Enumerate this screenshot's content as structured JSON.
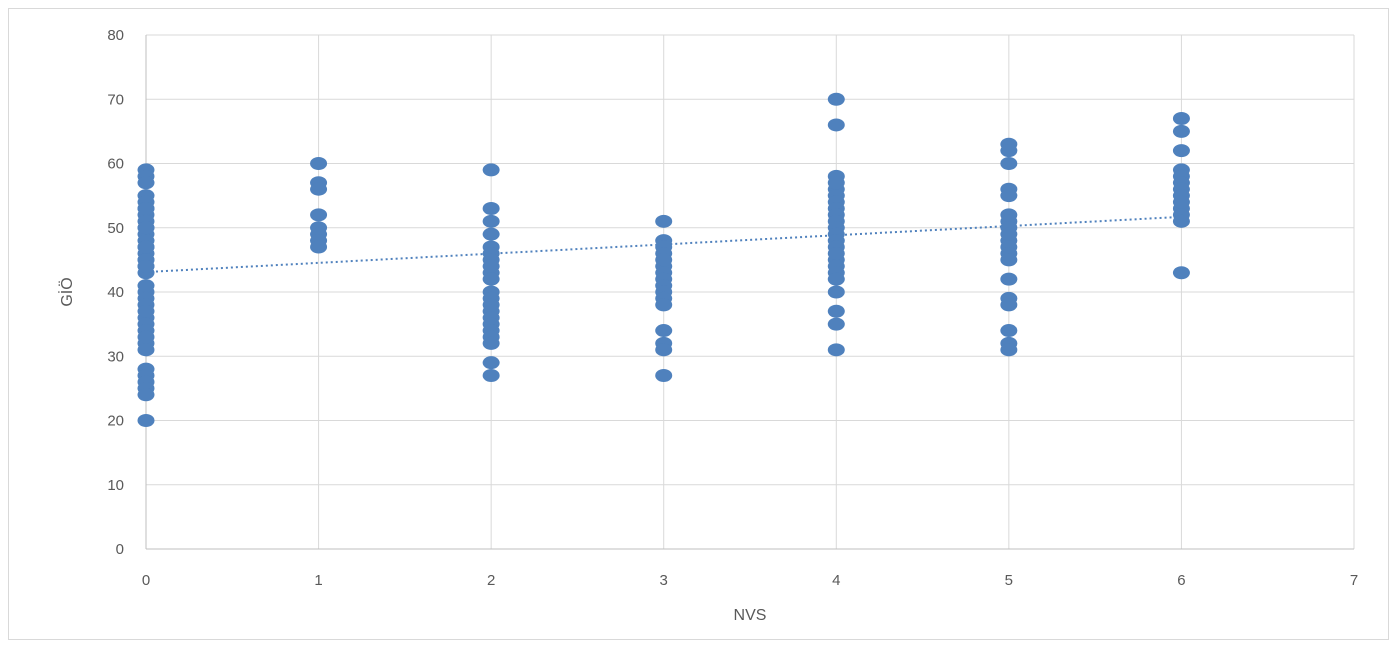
{
  "chart_data": {
    "type": "scatter",
    "title": "",
    "xlabel": "NVS",
    "ylabel": "GİÖ",
    "xlim": [
      0,
      7
    ],
    "ylim": [
      0,
      80
    ],
    "x_ticks": [
      0,
      1,
      2,
      3,
      4,
      5,
      6,
      7
    ],
    "y_ticks": [
      0,
      10,
      20,
      30,
      40,
      50,
      60,
      70,
      80
    ],
    "grid": true,
    "legend": "none",
    "colors": {
      "points": "#4f81bd",
      "trendline": "#4f81bd",
      "grid": "#d9d9d9",
      "axis": "#bfbfbf"
    },
    "series": [
      {
        "x": [
          0,
          0,
          0,
          0,
          0,
          0,
          0,
          0,
          0,
          0,
          0,
          0,
          0,
          0,
          0,
          0,
          0,
          0,
          0,
          0,
          0,
          0,
          0,
          0,
          0,
          0,
          0,
          0,
          0,
          0,
          0,
          0,
          0,
          0,
          0,
          0,
          0,
          0,
          1,
          1,
          1,
          1,
          1,
          1,
          1,
          1,
          2,
          2,
          2,
          2,
          2,
          2,
          2,
          2,
          2,
          2,
          2,
          2,
          2,
          2,
          2,
          2,
          2,
          2,
          2,
          2,
          2,
          3,
          3,
          3,
          3,
          3,
          3,
          3,
          3,
          3,
          3,
          3,
          3,
          3,
          3,
          3,
          3,
          4,
          4,
          4,
          4,
          4,
          4,
          4,
          4,
          4,
          4,
          4,
          4,
          4,
          4,
          4,
          4,
          4,
          4,
          4,
          4,
          4,
          4,
          4,
          5,
          5,
          5,
          5,
          5,
          5,
          5,
          5,
          5,
          5,
          5,
          5,
          5,
          5,
          5,
          5,
          5,
          5,
          5,
          6,
          6,
          6,
          6,
          6,
          6,
          6,
          6,
          6,
          6,
          6,
          6,
          6
        ],
        "y": [
          59,
          58,
          57,
          55,
          54,
          53,
          52,
          51,
          50,
          49,
          48,
          47,
          46,
          45,
          44,
          43,
          40,
          39,
          36,
          35,
          34,
          32,
          31,
          28,
          27,
          26,
          25,
          24,
          20,
          53,
          50,
          47,
          45,
          44,
          41,
          38,
          37,
          33,
          60,
          57,
          56,
          52,
          50,
          49,
          48,
          47,
          59,
          53,
          51,
          49,
          47,
          46,
          45,
          43,
          42,
          40,
          39,
          38,
          37,
          36,
          35,
          34,
          33,
          32,
          29,
          27,
          44,
          51,
          48,
          47,
          46,
          44,
          43,
          42,
          41,
          40,
          39,
          38,
          34,
          32,
          31,
          27,
          45,
          70,
          66,
          58,
          56,
          55,
          54,
          53,
          52,
          51,
          50,
          49,
          48,
          45,
          44,
          43,
          42,
          37,
          35,
          31,
          57,
          47,
          46,
          40,
          63,
          62,
          60,
          56,
          52,
          51,
          50,
          48,
          47,
          46,
          45,
          42,
          39,
          38,
          34,
          32,
          31,
          49,
          55,
          67,
          65,
          62,
          59,
          58,
          57,
          56,
          55,
          53,
          52,
          51,
          43,
          54
        ]
      }
    ],
    "trendline": {
      "type": "linear",
      "style": "dotted",
      "x": [
        0,
        6
      ],
      "y": [
        43.1,
        51.7
      ]
    }
  }
}
